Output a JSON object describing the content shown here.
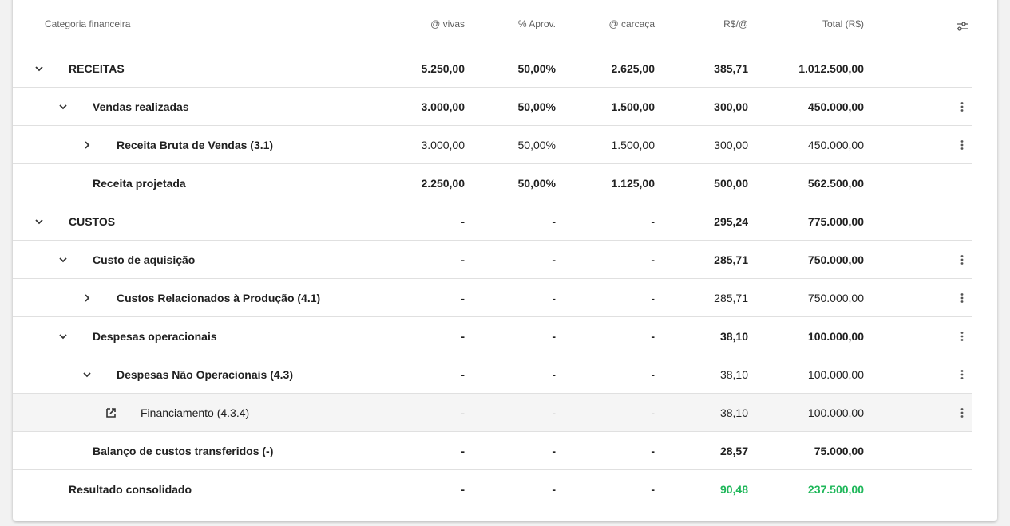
{
  "table": {
    "header": [
      "Categoria financeira",
      "@ vivas",
      "% Aprov.",
      "@ carcaça",
      "R$/@",
      "Total (R$)"
    ],
    "rows": [
      [
        "RECEITAS",
        "5.250,00",
        "50,00%",
        "2.625,00",
        "385,71",
        "1.012.500,00"
      ],
      [
        "Vendas realizadas",
        "3.000,00",
        "50,00%",
        "1.500,00",
        "300,00",
        "450.000,00"
      ],
      [
        "Receita Bruta de Vendas (3.1)",
        "3.000,00",
        "50,00%",
        "1.500,00",
        "300,00",
        "450.000,00"
      ],
      [
        "Receita projetada",
        "2.250,00",
        "50,00%",
        "1.125,00",
        "500,00",
        "562.500,00"
      ],
      [
        "CUSTOS",
        "-",
        "-",
        "-",
        "295,24",
        "775.000,00"
      ],
      [
        "Custo de aquisição",
        "-",
        "-",
        "-",
        "285,71",
        "750.000,00"
      ],
      [
        "Custos Relacionados à Produção (4.1)",
        "-",
        "-",
        "-",
        "285,71",
        "750.000,00"
      ],
      [
        "Despesas operacionais",
        "-",
        "-",
        "-",
        "38,10",
        "100.000,00"
      ],
      [
        "Despesas Não Operacionais (4.3)",
        "-",
        "-",
        "-",
        "38,10",
        "100.000,00"
      ],
      [
        "Financiamento (4.3.4)",
        "-",
        "-",
        "-",
        "38,10",
        "100.000,00"
      ],
      [
        "Balanço de custos transferidos (-)",
        "-",
        "-",
        "-",
        "28,57",
        "75.000,00"
      ],
      [
        "Resultado consolidado",
        "-",
        "-",
        "-",
        "90,48",
        "237.500,00"
      ]
    ]
  }
}
